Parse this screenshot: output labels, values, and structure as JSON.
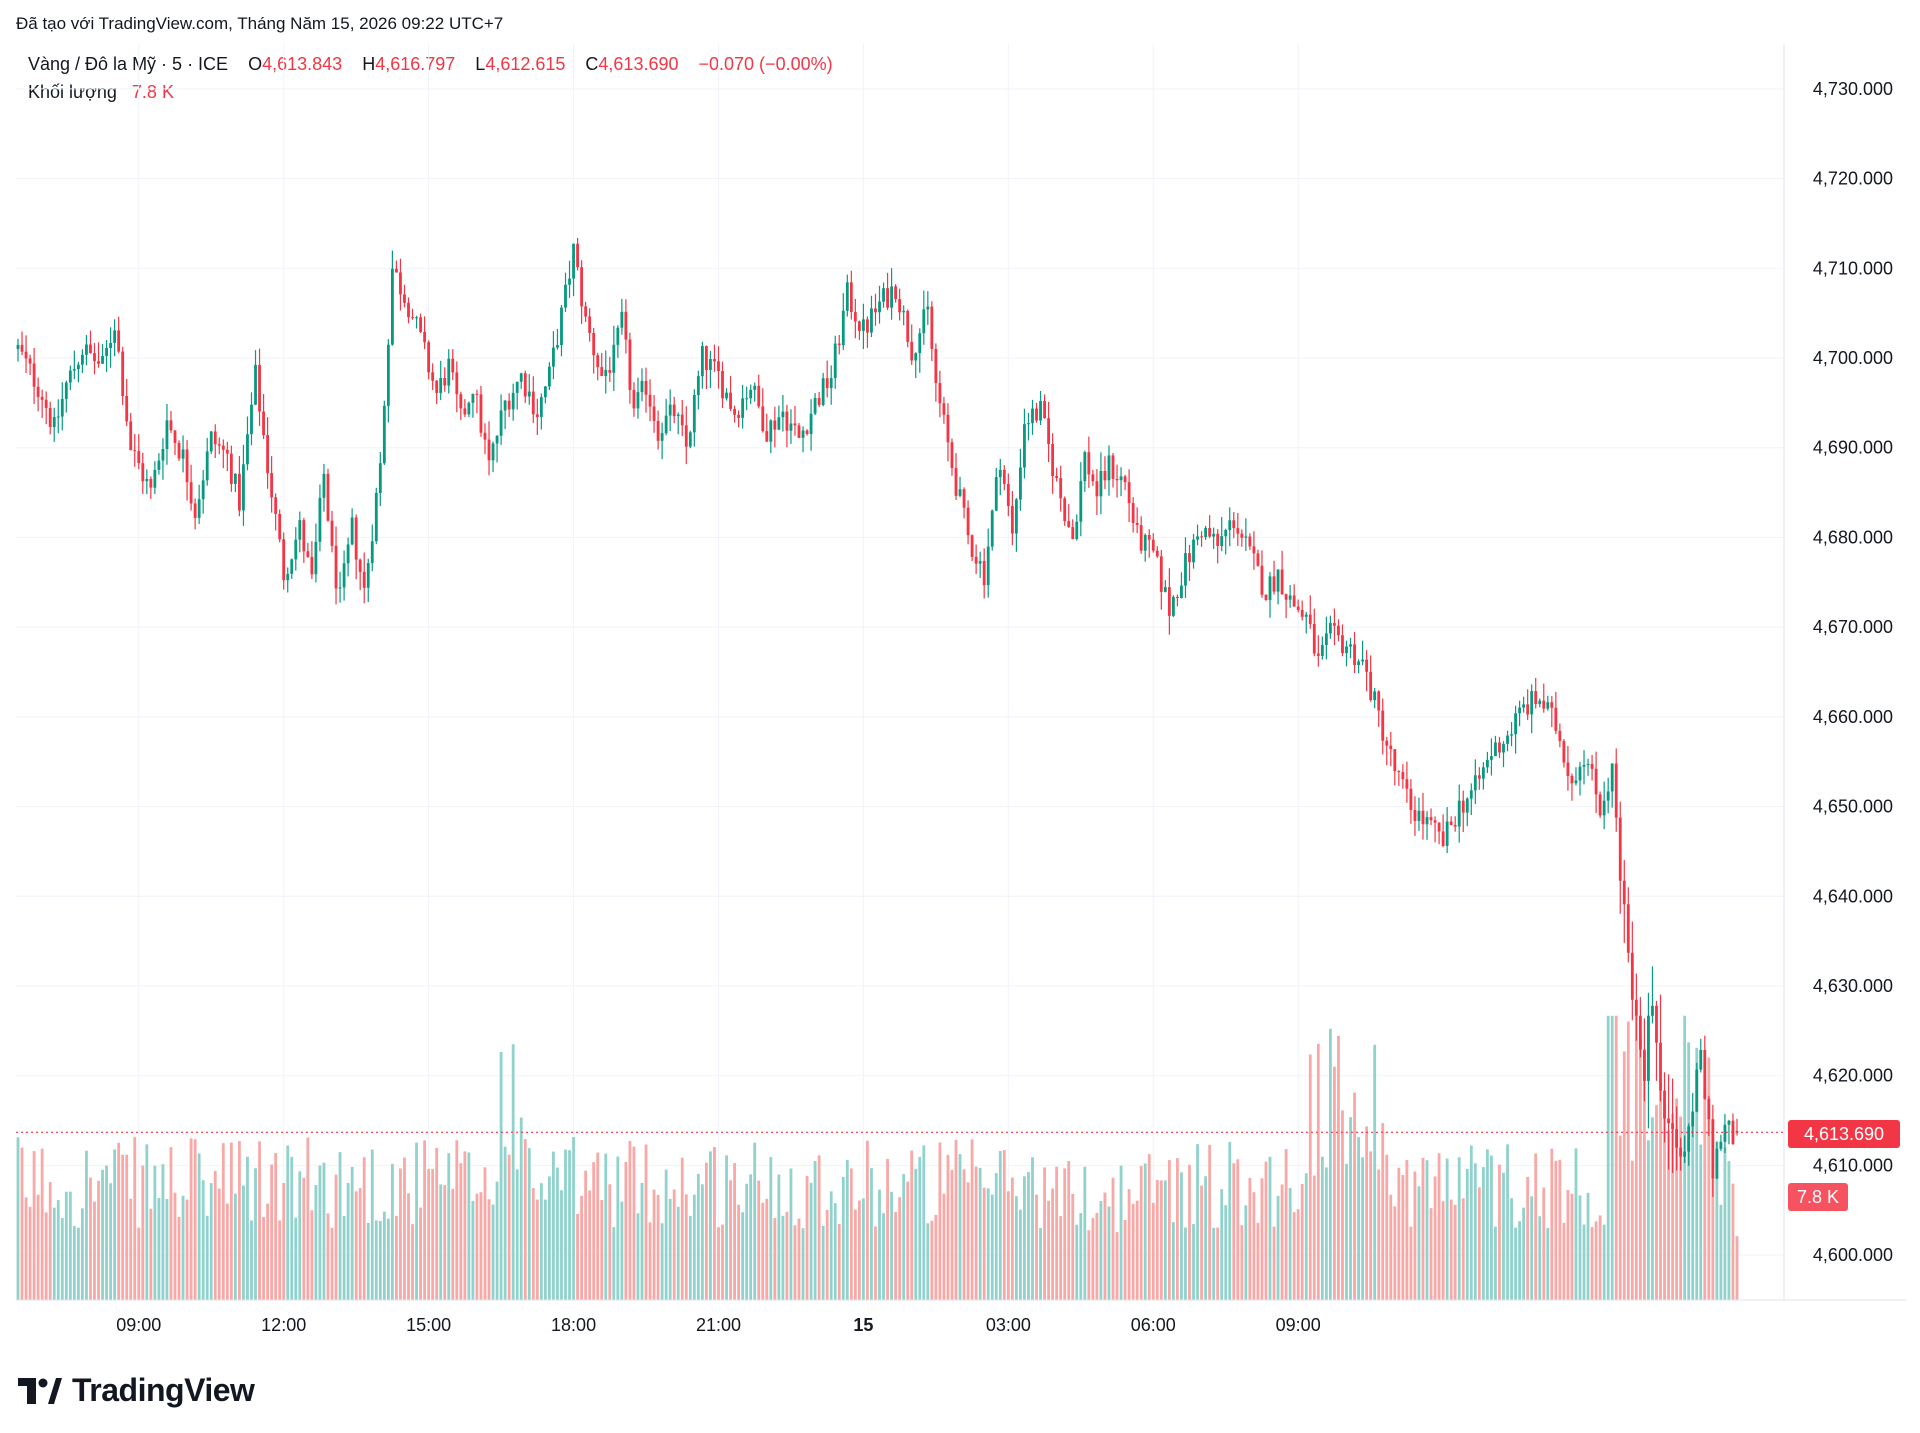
{
  "caption": "Đã tạo với TradingView.com, Tháng Năm 15, 2026 09:22 UTC+7",
  "legend": {
    "symbol": "Vàng / Đô la Mỹ · 5 · ICE",
    "o_label": "O",
    "o_value": "4,613.843",
    "h_label": "H",
    "h_value": "4,616.797",
    "l_label": "L",
    "l_value": "4,612.615",
    "c_label": "C",
    "c_value": "4,613.690",
    "change": "−0.070 (−0.00%)",
    "volume_label": "Khối lượng",
    "volume_value": "7.8 K"
  },
  "brand": "TradingView",
  "colors": {
    "up": "#089981",
    "down": "#f23645",
    "up_vol": "#92d2cc",
    "down_vol": "#f7a9a7",
    "grid": "#f0f3fa",
    "text": "#131722"
  },
  "chart_data": {
    "type": "candlestick",
    "interval_minutes": 5,
    "y_ticks": [
      "4,730.000",
      "4,720.000",
      "4,710.000",
      "4,700.000",
      "4,690.000",
      "4,680.000",
      "4,670.000",
      "4,660.000",
      "4,650.000",
      "4,640.000",
      "4,630.000",
      "4,620.000",
      "4,610.000",
      "4,600.000"
    ],
    "ylim": [
      4595,
      4735
    ],
    "x_ticks": [
      "09:00",
      "12:00",
      "15:00",
      "18:00",
      "21:00",
      "15",
      "03:00",
      "06:00",
      "09:00"
    ],
    "last_price": "4,613.690",
    "last_volume": "7.8 K",
    "close_path": [
      [
        0,
        4701
      ],
      [
        6,
        4696
      ],
      [
        9,
        4692
      ],
      [
        12,
        4697
      ],
      [
        16,
        4701
      ],
      [
        21,
        4699
      ],
      [
        24,
        4704
      ],
      [
        28,
        4690
      ],
      [
        33,
        4685
      ],
      [
        37,
        4693
      ],
      [
        41,
        4689
      ],
      [
        44,
        4683
      ],
      [
        48,
        4691
      ],
      [
        52,
        4689
      ],
      [
        55,
        4684
      ],
      [
        59,
        4698
      ],
      [
        62,
        4688
      ],
      [
        66,
        4676
      ],
      [
        70,
        4681
      ],
      [
        73,
        4675
      ],
      [
        76,
        4687
      ],
      [
        78,
        4678
      ],
      [
        80,
        4673
      ],
      [
        83,
        4681
      ],
      [
        86,
        4674
      ],
      [
        90,
        4688
      ],
      [
        93,
        4710
      ],
      [
        97,
        4706
      ],
      [
        100,
        4702
      ],
      [
        104,
        4696
      ],
      [
        107,
        4699
      ],
      [
        110,
        4693
      ],
      [
        113,
        4697
      ],
      [
        117,
        4688
      ],
      [
        121,
        4695
      ],
      [
        125,
        4698
      ],
      [
        129,
        4694
      ],
      [
        132,
        4698
      ],
      [
        136,
        4707
      ],
      [
        138,
        4712
      ],
      [
        141,
        4704
      ],
      [
        145,
        4698
      ],
      [
        148,
        4700
      ],
      [
        150,
        4704
      ],
      [
        153,
        4694
      ],
      [
        156,
        4697
      ],
      [
        159,
        4692
      ],
      [
        163,
        4694
      ],
      [
        166,
        4690
      ],
      [
        170,
        4700
      ],
      [
        174,
        4698
      ],
      [
        178,
        4694
      ],
      [
        182,
        4697
      ],
      [
        186,
        4692
      ],
      [
        190,
        4694
      ],
      [
        194,
        4691
      ],
      [
        198,
        4695
      ],
      [
        202,
        4698
      ],
      [
        206,
        4707
      ],
      [
        210,
        4703
      ],
      [
        214,
        4706
      ],
      [
        218,
        4708
      ],
      [
        222,
        4701
      ],
      [
        226,
        4705
      ],
      [
        228,
        4697
      ],
      [
        232,
        4688
      ],
      [
        236,
        4680
      ],
      [
        240,
        4676
      ],
      [
        244,
        4689
      ],
      [
        247,
        4680
      ],
      [
        250,
        4693
      ],
      [
        254,
        4694
      ],
      [
        258,
        4686
      ],
      [
        262,
        4680
      ],
      [
        265,
        4689
      ],
      [
        268,
        4685
      ],
      [
        271,
        4688
      ],
      [
        275,
        4686
      ],
      [
        278,
        4680
      ],
      [
        282,
        4678
      ],
      [
        286,
        4672
      ],
      [
        290,
        4677
      ],
      [
        294,
        4681
      ],
      [
        298,
        4679
      ],
      [
        302,
        4682
      ],
      [
        306,
        4678
      ],
      [
        310,
        4674
      ],
      [
        313,
        4676
      ],
      [
        316,
        4673
      ],
      [
        320,
        4671
      ],
      [
        323,
        4666
      ],
      [
        326,
        4669
      ],
      [
        330,
        4668
      ],
      [
        334,
        4666
      ],
      [
        338,
        4660
      ],
      [
        342,
        4654
      ],
      [
        346,
        4650
      ],
      [
        350,
        4648
      ],
      [
        354,
        4646
      ],
      [
        358,
        4650
      ],
      [
        362,
        4652
      ],
      [
        366,
        4656
      ],
      [
        370,
        4658
      ],
      [
        374,
        4661
      ],
      [
        378,
        4662
      ],
      [
        382,
        4659
      ],
      [
        386,
        4653
      ],
      [
        389,
        4656
      ],
      [
        393,
        4650
      ],
      [
        396,
        4654
      ],
      [
        398,
        4644
      ],
      [
        401,
        4627
      ],
      [
        404,
        4621
      ],
      [
        406,
        4628
      ],
      [
        409,
        4618
      ],
      [
        412,
        4610
      ],
      [
        415,
        4614
      ],
      [
        418,
        4622
      ],
      [
        421,
        4610
      ],
      [
        424,
        4614
      ],
      [
        427,
        4613.7
      ]
    ],
    "n_candles": 428
  }
}
